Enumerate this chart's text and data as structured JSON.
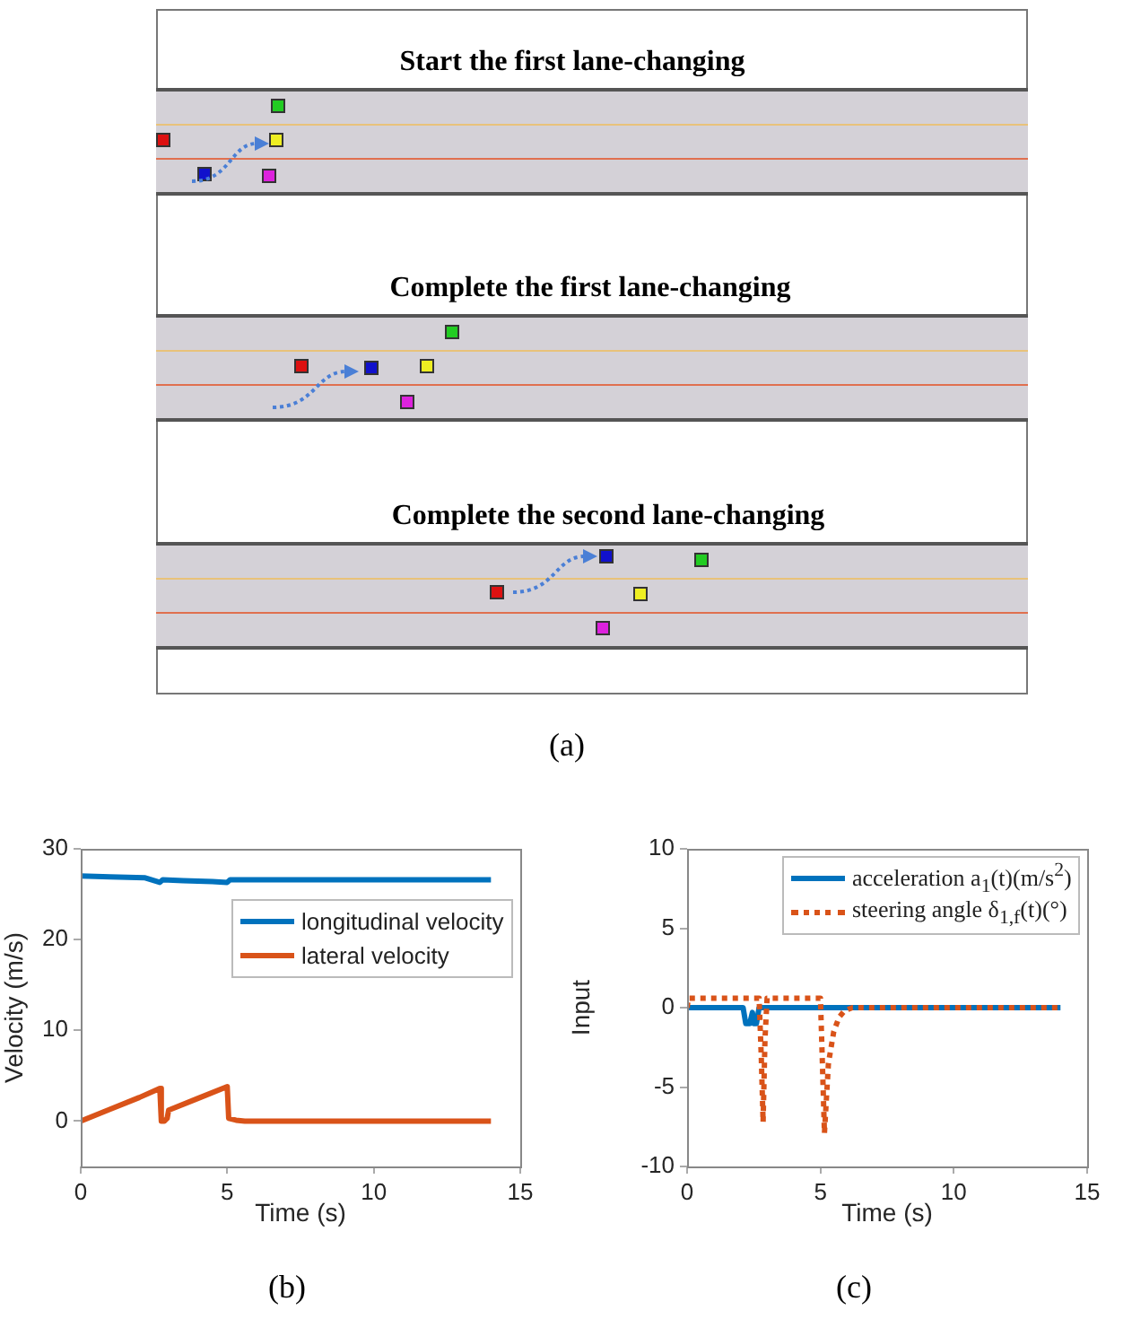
{
  "chart_data": [
    {
      "type": "other",
      "annotations": [
        "Start the first lane-changing",
        "Complete the first lane-changing",
        "Complete the second lane-changing",
        "(a)"
      ]
    },
    {
      "type": "line",
      "xlabel": "Time (s)",
      "ylabel": "Velocity (m/s)",
      "annotations": [
        "(b)"
      ],
      "xlim": [
        0,
        15
      ],
      "xticks": [
        0,
        5,
        10,
        15
      ],
      "ylim": [
        -5,
        30
      ],
      "yticks": [
        0,
        10,
        20,
        30
      ],
      "legend": "top right",
      "marker": "none",
      "series": [
        {
          "name": "longitudinal velocity",
          "color": "#0072bd",
          "x": [
            0,
            1,
            2.2,
            2.5,
            2.7,
            2.8,
            3.5,
            4.5,
            5,
            5.1,
            6,
            8,
            10,
            12,
            14
          ],
          "values": [
            27,
            26.9,
            26.8,
            26.5,
            26.3,
            26.6,
            26.5,
            26.4,
            26.3,
            26.6,
            26.6,
            26.6,
            26.6,
            26.6,
            26.6
          ]
        },
        {
          "name": "lateral velocity",
          "color": "#d95319",
          "x": [
            0,
            1,
            2,
            2.7,
            2.75,
            2.85,
            2.95,
            3,
            4,
            5,
            5.05,
            5.3,
            5.6,
            6,
            8,
            10,
            12,
            14
          ],
          "values": [
            0,
            1.3,
            2.6,
            3.6,
            0,
            0,
            0.3,
            1.2,
            2.5,
            3.8,
            0.3,
            0.1,
            0,
            0,
            0,
            0,
            0,
            0
          ]
        }
      ]
    },
    {
      "type": "line",
      "xlabel": "Time (s)",
      "ylabel": "Input",
      "annotations": [
        "(c)"
      ],
      "xlim": [
        0,
        15
      ],
      "xticks": [
        0,
        5,
        10,
        15
      ],
      "ylim": [
        -10,
        10
      ],
      "yticks": [
        -10,
        -5,
        0,
        5,
        10
      ],
      "legend": "top right",
      "marker": "none",
      "series": [
        {
          "name": "acceleration a$_{1}$(t)(m/s$^{2}$)",
          "color": "#0072bd",
          "line_style": "solid",
          "x": [
            0,
            2.1,
            2.2,
            2.35,
            2.45,
            2.5,
            2.6,
            2.7,
            4,
            6,
            8,
            10,
            12,
            14
          ],
          "values": [
            0,
            0,
            -1,
            -1,
            -0.3,
            -1,
            -1,
            0,
            0,
            0,
            0,
            0,
            0,
            0
          ]
        },
        {
          "name": "steering angle δ$_{1,f}$(t)(°)",
          "color": "#d95319",
          "line_style": "dotted",
          "x": [
            0,
            0.05,
            1,
            2.7,
            2.78,
            2.85,
            2.92,
            3,
            4,
            5,
            5.1,
            5.15,
            5.3,
            5.5,
            5.7,
            5.9,
            6.2,
            8,
            10,
            12,
            14
          ],
          "values": [
            0,
            0.6,
            0.6,
            0.6,
            -3,
            -7.2,
            -2,
            0.6,
            0.6,
            0.6,
            -5,
            -7.9,
            -3.5,
            -1.5,
            -0.6,
            -0.2,
            0,
            0,
            0,
            0,
            0
          ]
        }
      ]
    }
  ]
}
